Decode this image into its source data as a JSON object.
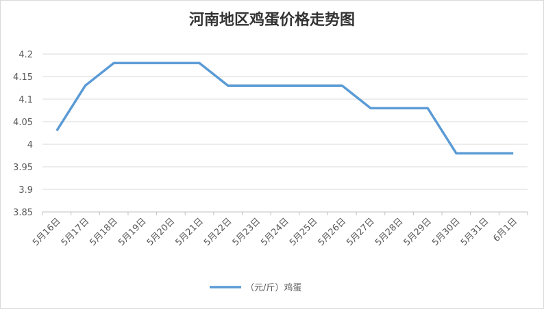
{
  "chart_data": {
    "type": "line",
    "title": "河南地区鸡蛋价格走势图",
    "categories": [
      "5月16日",
      "5月17日",
      "5月18日",
      "5月19日",
      "5月20日",
      "5月21日",
      "5月22日",
      "5月23日",
      "5月24日",
      "5月25日",
      "5月26日",
      "5月27日",
      "5月28日",
      "5月29日",
      "5月30日",
      "5月31日",
      "6月1日"
    ],
    "series": [
      {
        "name": "（元/斤）鸡蛋",
        "color": "#5b9bd5",
        "values": [
          4.03,
          4.13,
          4.18,
          4.18,
          4.18,
          4.18,
          4.13,
          4.13,
          4.13,
          4.13,
          4.13,
          4.08,
          4.08,
          4.08,
          3.98,
          3.98,
          3.98
        ]
      }
    ],
    "ylim": [
      3.85,
      4.2
    ],
    "yticks": [
      3.85,
      3.9,
      3.95,
      4,
      4.05,
      4.1,
      4.15,
      4.2
    ],
    "grid": true,
    "legend": "bottom"
  }
}
